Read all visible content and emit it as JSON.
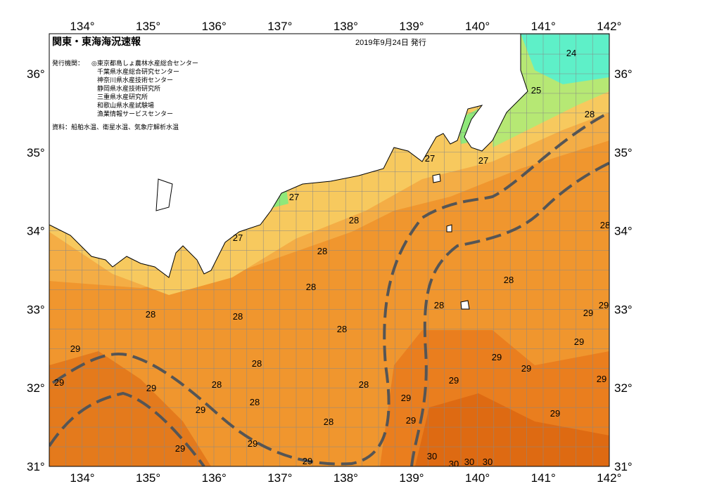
{
  "header": {
    "title": "関東・東海海況速報",
    "date": "2019年9月24日 発行",
    "issuer_label": "発行機関：",
    "issuers": [
      "◎東京都島しょ農林水産総合センター",
      "千葉県水産総合研究センター",
      "神奈川県水産技術センター",
      "静岡県水産技術研究所",
      "三重県水産研究所",
      "和歌山県水産試験場",
      "漁業情報サービスセンター"
    ],
    "source": "資料：船舶水温、衛星水温、気象庁解析水温"
  },
  "map": {
    "lon_labels": [
      "134°",
      "135°",
      "136°",
      "137°",
      "138°",
      "139°",
      "140°",
      "141°",
      "142°"
    ],
    "lat_labels": [
      "31°",
      "32°",
      "33°",
      "34°",
      "35°",
      "36°"
    ],
    "contour_labels": [
      "24",
      "25",
      "28",
      "27",
      "27",
      "27",
      "28",
      "27",
      "28",
      "28",
      "28",
      "28",
      "28",
      "28",
      "28",
      "29",
      "29",
      "28",
      "29",
      "29",
      "29",
      "28",
      "29",
      "29",
      "29",
      "28",
      "28",
      "29",
      "29",
      "29",
      "28",
      "29",
      "29",
      "29",
      "28",
      "29",
      "29",
      "29",
      "30",
      "30",
      "30",
      "30"
    ]
  }
}
